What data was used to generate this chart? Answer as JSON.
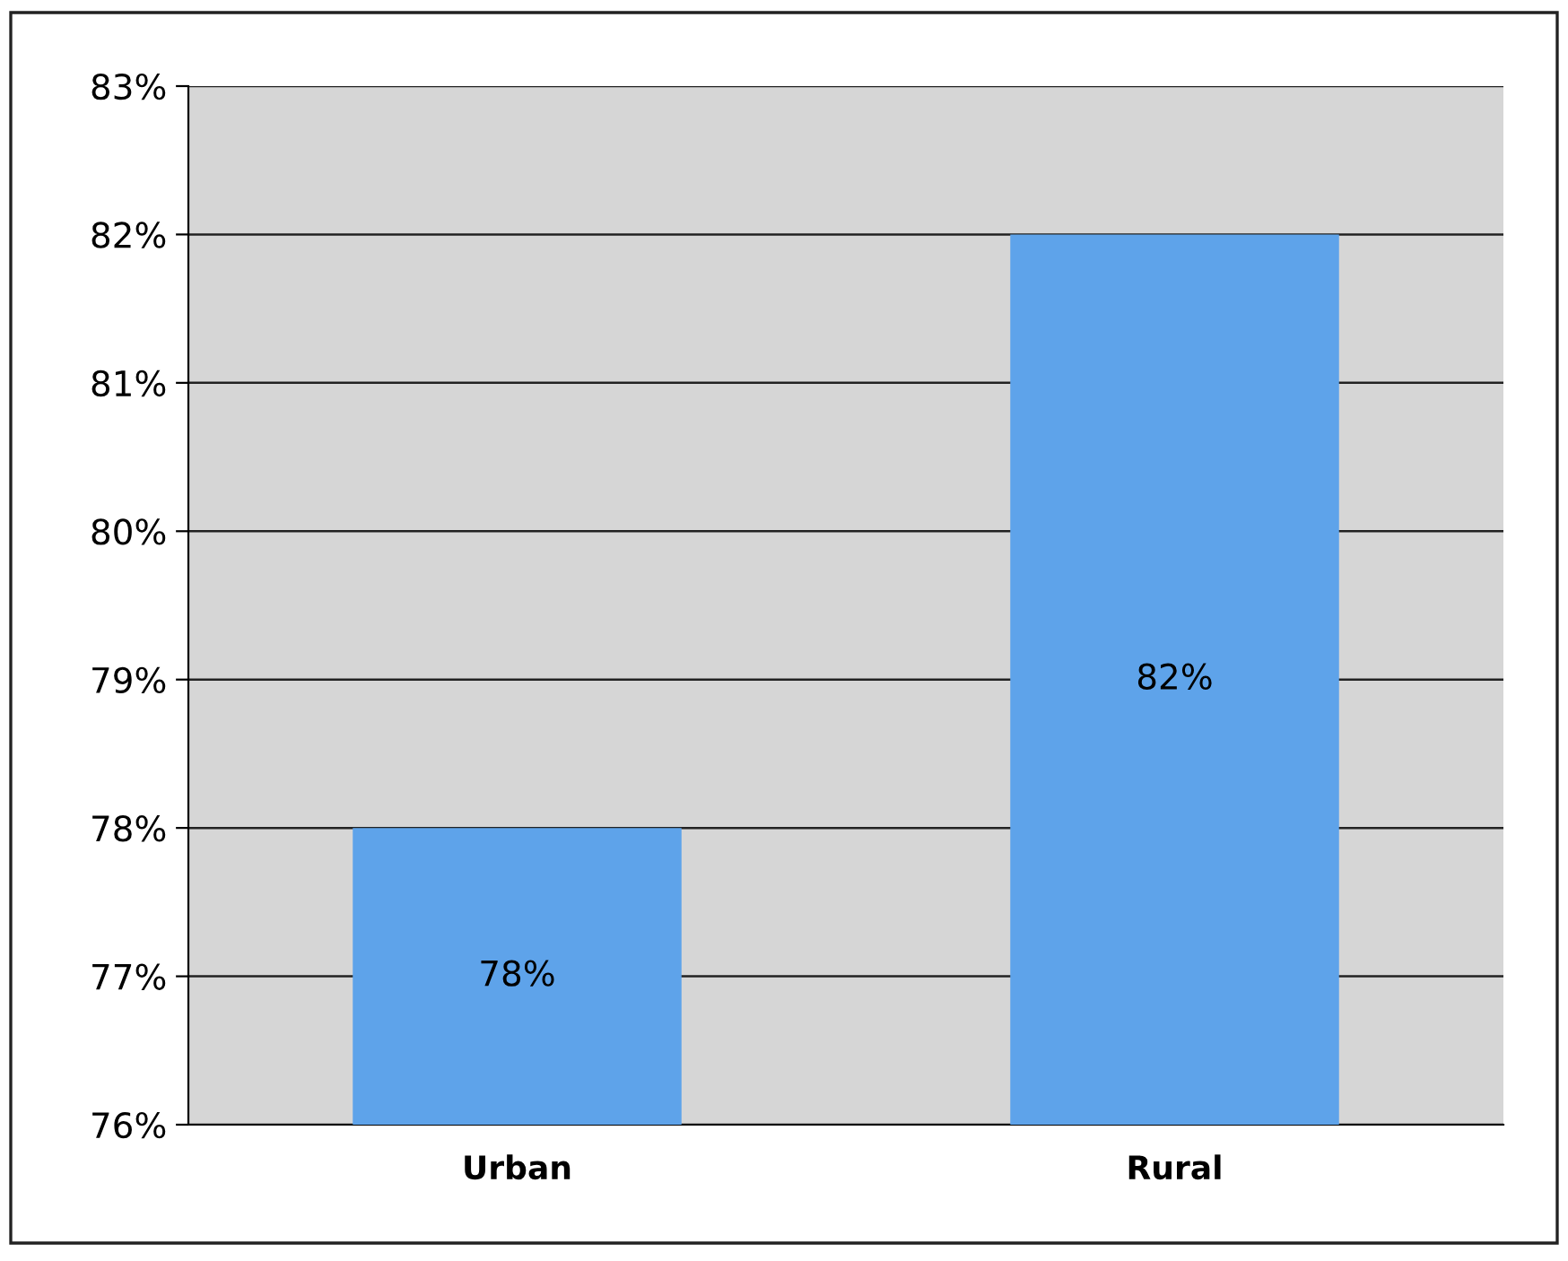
{
  "chart_data": {
    "type": "bar",
    "categories": [
      "Urban",
      "Rural"
    ],
    "values": [
      78,
      82
    ],
    "color": "#5ea3ea",
    "value_labels": [
      "78%",
      "82%"
    ],
    "ylim": [
      76,
      83
    ],
    "yticks": [
      {
        "value": 76,
        "label": "76%"
      },
      {
        "value": 77,
        "label": "77%"
      },
      {
        "value": 78,
        "label": "78%"
      },
      {
        "value": 79,
        "label": "79%"
      },
      {
        "value": 80,
        "label": "80%"
      },
      {
        "value": 81,
        "label": "81%"
      },
      {
        "value": 82,
        "label": "82%"
      },
      {
        "value": 83,
        "label": "83%"
      }
    ],
    "grid": "y"
  }
}
